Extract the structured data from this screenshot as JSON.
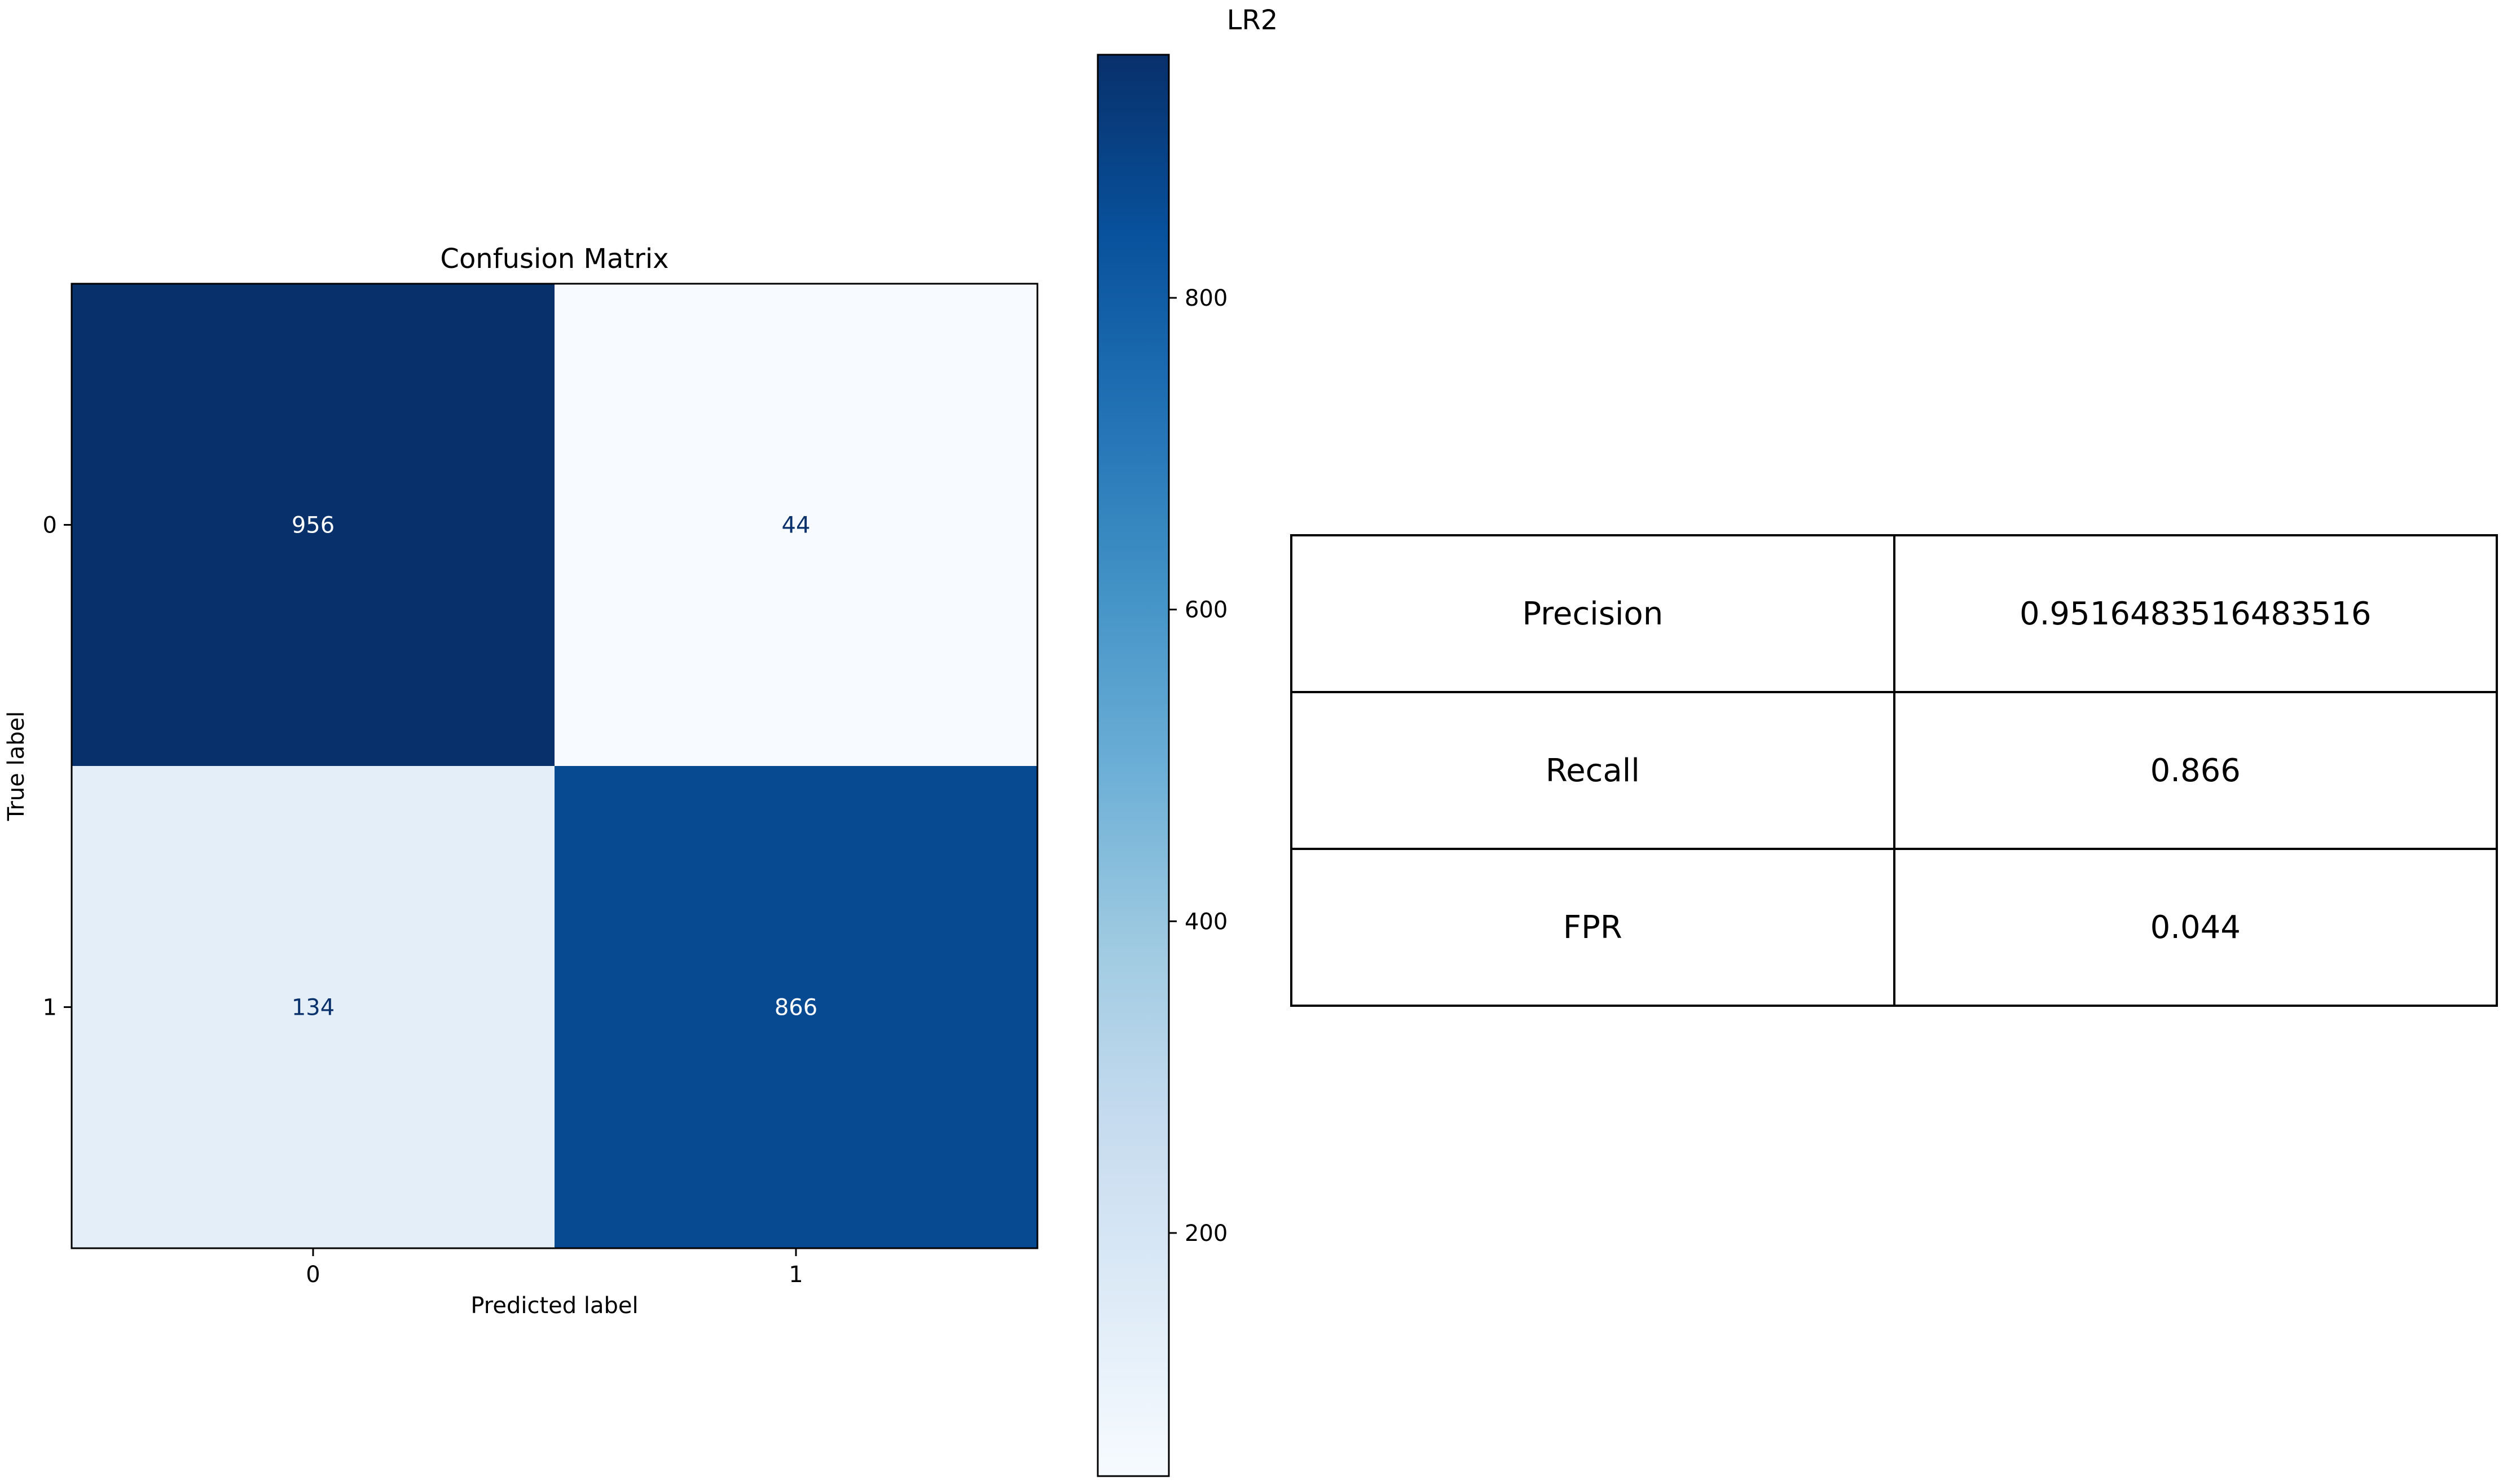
{
  "figure_title": "LR2",
  "chart_data": [
    {
      "type": "heatmap",
      "title": "Confusion Matrix",
      "xlabel": "Predicted label",
      "ylabel": "True label",
      "x_categories": [
        "0",
        "1"
      ],
      "y_categories": [
        "0",
        "1"
      ],
      "matrix": [
        [
          956,
          44
        ],
        [
          134,
          866
        ]
      ],
      "colormap": "Blues",
      "colorbar": {
        "range": [
          44,
          956
        ],
        "ticks": [
          200,
          400,
          600,
          800
        ]
      }
    }
  ],
  "metrics_table": [
    {
      "label": "Precision",
      "value": "0.9516483516483516"
    },
    {
      "label": "Recall",
      "value": "0.866"
    },
    {
      "label": "FPR",
      "value": "0.044"
    }
  ]
}
